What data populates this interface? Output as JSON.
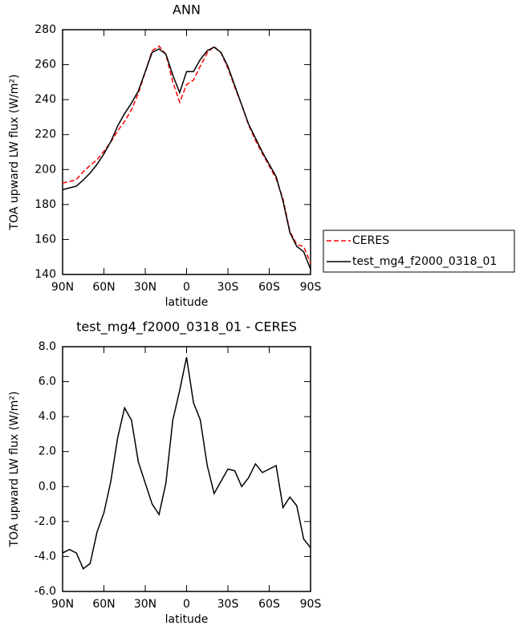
{
  "chart_data": [
    {
      "type": "line",
      "title": "ANN",
      "xlabel": "latitude",
      "ylabel": "TOA upward LW flux (W/m²)",
      "x": [
        90,
        85,
        80,
        75,
        70,
        65,
        60,
        55,
        50,
        45,
        40,
        35,
        30,
        25,
        20,
        15,
        10,
        5,
        0,
        -5,
        -10,
        -15,
        -20,
        -25,
        -30,
        -35,
        -40,
        -45,
        -50,
        -55,
        -60,
        -65,
        -70,
        -75,
        -80,
        -85,
        -90
      ],
      "series": [
        {
          "name": "CERES",
          "color": "#ff0000",
          "style": "dashed",
          "values": [
            192.3,
            193.1,
            194.3,
            198.7,
            202.4,
            205.6,
            210.5,
            215.7,
            222.2,
            227.5,
            234.2,
            243.6,
            255.8,
            268,
            270.6,
            265.8,
            250.2,
            238.5,
            248.6,
            251.2,
            259.2,
            266.8,
            270.4,
            266.7,
            258,
            247.1,
            237,
            225.5,
            216.7,
            209.2,
            202,
            194.8,
            183.2,
            164.6,
            157.1,
            156,
            146.5
          ]
        },
        {
          "name": "test_mg4_f2000_0318_01",
          "color": "#000000",
          "style": "solid",
          "values": [
            188.5,
            189.5,
            190.5,
            194,
            198,
            203,
            209,
            216,
            225,
            232,
            238,
            245,
            256,
            267,
            269,
            266,
            254,
            244,
            256,
            256,
            263,
            268,
            270,
            267,
            259,
            248,
            237,
            226,
            218,
            210,
            203,
            196,
            182,
            164,
            156,
            153,
            143
          ]
        }
      ],
      "xlim": [
        90,
        -90
      ],
      "xticks": [
        {
          "value": 90,
          "label": "90N"
        },
        {
          "value": 60,
          "label": "60N"
        },
        {
          "value": 30,
          "label": "30N"
        },
        0,
        {
          "value": -30,
          "label": "30S"
        },
        {
          "value": -60,
          "label": "60S"
        },
        {
          "value": -90,
          "label": "90S"
        }
      ],
      "ylim": [
        140,
        280
      ],
      "yticks": [
        140,
        160,
        180,
        200,
        220,
        240,
        260,
        280
      ],
      "legend": "right"
    },
    {
      "type": "line",
      "title": "test_mg4_f2000_0318_01 - CERES",
      "xlabel": "latitude",
      "ylabel": "TOA upward LW flux (W/m²)",
      "x": [
        90,
        85,
        80,
        75,
        70,
        65,
        60,
        55,
        50,
        45,
        40,
        35,
        30,
        25,
        20,
        15,
        10,
        5,
        0,
        -5,
        -10,
        -15,
        -20,
        -25,
        -30,
        -35,
        -40,
        -45,
        -50,
        -55,
        -60,
        -65,
        -70,
        -75,
        -80,
        -85,
        -90
      ],
      "color": "#000000",
      "values": [
        -3.8,
        -3.6,
        -3.8,
        -4.7,
        -4.4,
        -2.6,
        -1.5,
        0.3,
        2.8,
        4.5,
        3.8,
        1.4,
        0.2,
        -1.0,
        -1.6,
        0.2,
        3.8,
        5.5,
        7.4,
        4.8,
        3.8,
        1.2,
        -0.4,
        0.3,
        1.0,
        0.9,
        0.0,
        0.5,
        1.3,
        0.8,
        1.0,
        1.2,
        -1.2,
        -0.6,
        -1.1,
        -3.0,
        -3.5
      ],
      "xlim": [
        90,
        -90
      ],
      "xticks": [
        {
          "value": 90,
          "label": "90N"
        },
        {
          "value": 60,
          "label": "60N"
        },
        {
          "value": 30,
          "label": "30N"
        },
        0,
        {
          "value": -30,
          "label": "30S"
        },
        {
          "value": -60,
          "label": "60S"
        },
        {
          "value": -90,
          "label": "90S"
        }
      ],
      "ylim": [
        -6,
        8
      ],
      "yticks": [
        {
          "value": -6,
          "label": "-6.0"
        },
        {
          "value": -4,
          "label": "-4.0"
        },
        {
          "value": -2,
          "label": "-2.0"
        },
        {
          "value": 0,
          "label": "0.0"
        },
        {
          "value": 2,
          "label": "2.0"
        },
        {
          "value": 4,
          "label": "4.0"
        },
        {
          "value": 6,
          "label": "6.0"
        },
        {
          "value": 8,
          "label": "8.0"
        }
      ]
    }
  ]
}
